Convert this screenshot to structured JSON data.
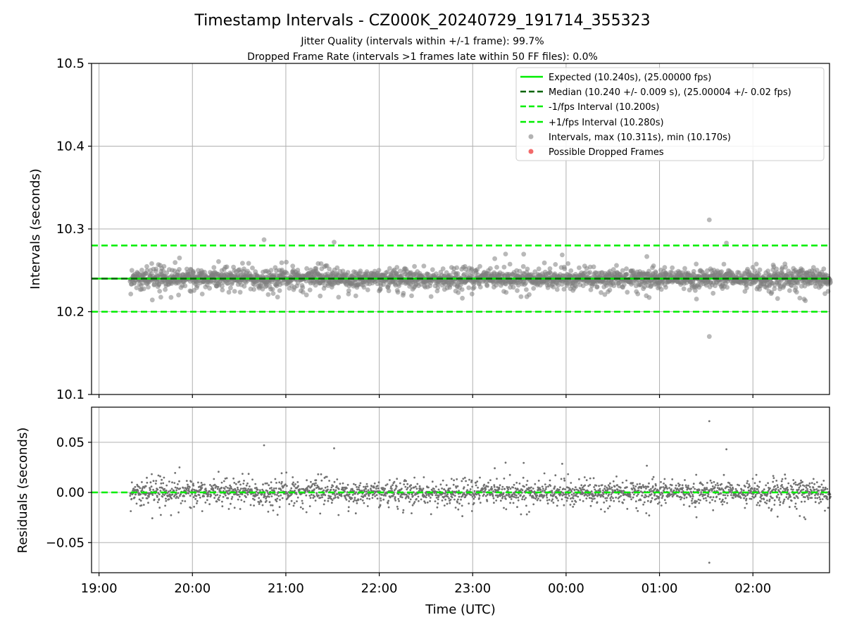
{
  "chart_data": [
    {
      "type": "line",
      "title": "Timestamp Intervals - CZ000K_20240729_191714_355323",
      "subtitle_lines": [
        "Jitter Quality (intervals within +/-1 frame): 99.7%",
        "Dropped Frame Rate (intervals >1 frames late within 50 FF files): 0.0%"
      ],
      "xlabel": "",
      "ylabel": "Intervals (seconds)",
      "ylim": [
        10.1,
        10.5
      ],
      "yticks": [
        "10.1",
        "10.2",
        "10.3",
        "10.4",
        "10.5"
      ],
      "xlim_hours": [
        18.92,
        26.82
      ],
      "grid": true,
      "legend_placement": "top-right",
      "series": [
        {
          "name": "Expected (10.240s), (25.00000 fps)",
          "kind": "hline",
          "y": 10.24,
          "color": "#00ee00",
          "style": "solid"
        },
        {
          "name": "Median (10.240 +/- 0.009 s), (25.00004 +/- 0.02 fps)",
          "kind": "hline",
          "y": 10.24,
          "color": "#006400",
          "style": "dashed"
        },
        {
          "name": "-1/fps Interval (10.200s)",
          "kind": "hline",
          "y": 10.2,
          "color": "#00ee00",
          "style": "dashed"
        },
        {
          "name": "+1/fps Interval (10.280s)",
          "kind": "hline",
          "y": 10.28,
          "color": "#00ee00",
          "style": "dashed"
        },
        {
          "name": "Intervals, max (10.311s), min (10.170s)",
          "kind": "scatter",
          "color": "#808080",
          "x_range": [
            "19:20",
            "02:50"
          ],
          "median": 10.24,
          "typical_spread": 0.009,
          "extremes": [
            {
              "x": "01:32",
              "y": 10.311
            },
            {
              "x": "01:32",
              "y": 10.17
            },
            {
              "x": "20:46",
              "y": 10.287
            },
            {
              "x": "21:31",
              "y": 10.284
            },
            {
              "x": "01:43",
              "y": 10.283
            }
          ]
        },
        {
          "name": "Possible Dropped Frames",
          "kind": "scatter",
          "color": "#f05050",
          "points": []
        }
      ]
    },
    {
      "type": "scatter",
      "xlabel": "Time (UTC)",
      "ylabel": "Residuals (seconds)",
      "ylim": [
        -0.08,
        0.085
      ],
      "yticks": [
        "−0.05",
        "0.00",
        "0.05"
      ],
      "xticks": [
        "19:00",
        "20:00",
        "21:00",
        "22:00",
        "23:00",
        "00:00",
        "01:00",
        "02:00"
      ],
      "grid": true,
      "series": [
        {
          "name": "",
          "kind": "hline",
          "y": 0.0,
          "color": "#00ee00",
          "style": "dashed"
        },
        {
          "name": "",
          "kind": "scatter",
          "color": "#707070",
          "extremes": [
            {
              "x": "01:32",
              "y": 0.071
            },
            {
              "x": "01:32",
              "y": -0.07
            },
            {
              "x": "20:46",
              "y": 0.047
            },
            {
              "x": "21:31",
              "y": 0.044
            }
          ]
        }
      ]
    }
  ]
}
